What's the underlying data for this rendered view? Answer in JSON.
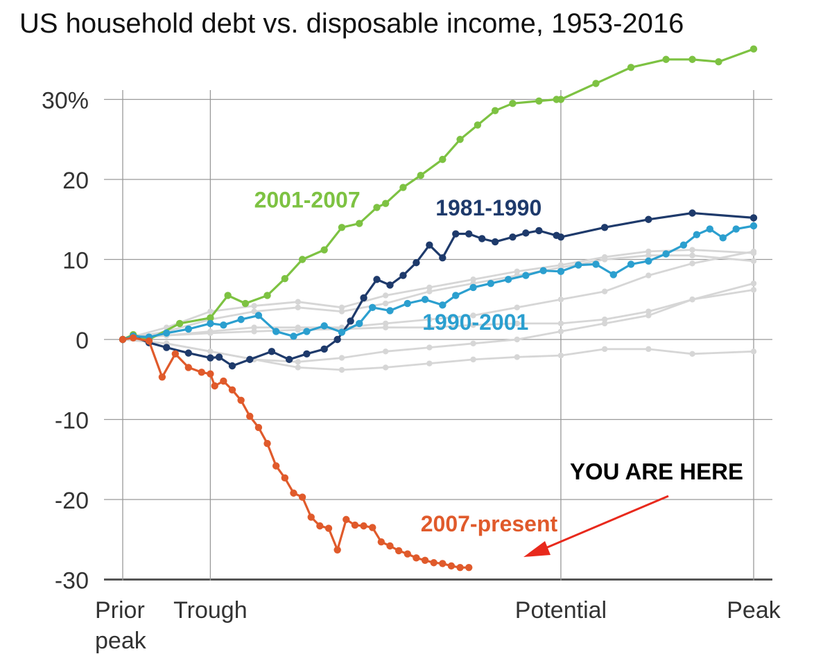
{
  "chart_data": {
    "type": "line",
    "title": "US household debt vs. disposable income, 1953-2016",
    "xlabel": "",
    "ylabel": "",
    "ylim": [
      -30,
      36
    ],
    "y_ticks": [
      "30%",
      "20",
      "10",
      "0",
      "-10",
      "-20",
      "-30"
    ],
    "y_tick_values": [
      30,
      20,
      10,
      0,
      -10,
      -20,
      -30
    ],
    "x_ticks": [
      {
        "value": 0,
        "label": "Prior\npeak"
      },
      {
        "value": 1,
        "label": "Trough"
      },
      {
        "value": 5,
        "label": "Potential"
      },
      {
        "value": 7.2,
        "label": "Peak"
      }
    ],
    "xlim": [
      0,
      7.2
    ],
    "grid": true,
    "annotation": "YOU ARE HERE",
    "series": [
      {
        "name": "2001-2007",
        "color": "#7dc242",
        "emphasis": true,
        "x": [
          0,
          0.12,
          0.3,
          0.65,
          1,
          1.2,
          1.4,
          1.65,
          1.85,
          2.05,
          2.3,
          2.5,
          2.7,
          2.9,
          3.0,
          3.2,
          3.4,
          3.65,
          3.85,
          4.05,
          4.25,
          4.45,
          4.75,
          4.95,
          5.0,
          5.4,
          5.8,
          6.2,
          6.5,
          6.8,
          7.2
        ],
        "y": [
          0,
          0.6,
          0,
          2,
          2.7,
          5.5,
          4.5,
          5.5,
          7.6,
          10,
          11.2,
          14,
          14.5,
          16.5,
          17,
          19,
          20.5,
          22.5,
          25,
          26.8,
          28.6,
          29.5,
          29.8,
          30,
          30,
          32,
          34,
          35,
          35,
          34.7,
          36.3
        ]
      },
      {
        "name": "1981-1990",
        "color": "#1e3a6b",
        "emphasis": true,
        "x": [
          0,
          0.12,
          0.3,
          0.5,
          0.75,
          1,
          1.1,
          1.25,
          1.45,
          1.7,
          1.9,
          2.1,
          2.3,
          2.45,
          2.6,
          2.75,
          2.9,
          3.05,
          3.2,
          3.35,
          3.5,
          3.65,
          3.8,
          3.95,
          4.1,
          4.25,
          4.45,
          4.6,
          4.75,
          4.95,
          5.0,
          5.5,
          6.0,
          6.5,
          7.2
        ],
        "y": [
          0,
          0.4,
          -0.4,
          -1,
          -1.7,
          -2.3,
          -2.2,
          -3.3,
          -2.5,
          -1.5,
          -2.5,
          -1.8,
          -1.2,
          0,
          2.3,
          5.2,
          7.5,
          6.8,
          8,
          9.6,
          11.8,
          10.2,
          13.2,
          13.2,
          12.6,
          12.2,
          12.8,
          13.3,
          13.6,
          13,
          12.8,
          14,
          15,
          15.8,
          15.2
        ]
      },
      {
        "name": "1990-2001",
        "color": "#2b9fcf",
        "emphasis": true,
        "x": [
          0,
          0.12,
          0.3,
          0.5,
          0.75,
          1,
          1.15,
          1.35,
          1.55,
          1.75,
          1.95,
          2.1,
          2.3,
          2.5,
          2.7,
          2.85,
          3.05,
          3.25,
          3.45,
          3.65,
          3.8,
          4.0,
          4.2,
          4.4,
          4.6,
          4.8,
          5.0,
          5.2,
          5.4,
          5.6,
          5.8,
          6.0,
          6.2,
          6.4,
          6.55,
          6.7,
          6.85,
          7.0,
          7.2
        ],
        "y": [
          0,
          0.4,
          0.3,
          0.8,
          1.3,
          2,
          1.8,
          2.5,
          3,
          1,
          0.4,
          1,
          1.7,
          0.9,
          2,
          4,
          3.6,
          4.5,
          5,
          4.3,
          5.5,
          6.5,
          7,
          7.5,
          8,
          8.6,
          8.5,
          9.3,
          9.4,
          8.1,
          9.4,
          9.8,
          10.7,
          11.8,
          13.1,
          13.8,
          12.7,
          13.8,
          14.2
        ]
      },
      {
        "name": "2007-present",
        "color": "#e05a2b",
        "emphasis": true,
        "x": [
          0,
          0.12,
          0.3,
          0.45,
          0.6,
          0.75,
          0.9,
          1.0,
          1.05,
          1.15,
          1.25,
          1.35,
          1.45,
          1.55,
          1.65,
          1.75,
          1.85,
          1.95,
          2.05,
          2.15,
          2.25,
          2.35,
          2.45,
          2.55,
          2.65,
          2.75,
          2.85,
          2.95,
          3.05,
          3.15,
          3.25,
          3.35,
          3.45,
          3.55,
          3.65,
          3.75,
          3.85,
          3.95
        ],
        "y": [
          0,
          0.2,
          -0.2,
          -4.7,
          -1.8,
          -3.5,
          -4.1,
          -4.3,
          -5.8,
          -5.2,
          -6.3,
          -7.6,
          -9.6,
          -11,
          -13,
          -15.8,
          -17.3,
          -19.2,
          -19.7,
          -22.2,
          -23.3,
          -23.6,
          -26.3,
          -22.5,
          -23.2,
          -23.3,
          -23.5,
          -25.3,
          -25.8,
          -26.4,
          -26.8,
          -27.3,
          -27.6,
          -27.9,
          -28,
          -28.3,
          -28.5,
          -28.5
        ]
      },
      {
        "name": "",
        "color": "#d6d6d6",
        "emphasis": false,
        "x": [
          0,
          0.5,
          1,
          1.5,
          2,
          2.5,
          3,
          3.5,
          4,
          4.5,
          5,
          5.5,
          6,
          6.5,
          7.2
        ],
        "y": [
          0,
          1.5,
          3.5,
          4.2,
          4.7,
          4,
          5.5,
          6.5,
          7.5,
          8.5,
          9.3,
          10.3,
          11,
          11.2,
          10.8
        ]
      },
      {
        "name": "",
        "color": "#d6d6d6",
        "emphasis": false,
        "x": [
          0,
          0.5,
          1,
          1.5,
          2,
          2.5,
          3,
          3.5,
          4,
          4.5,
          5,
          5.5,
          6,
          6.5,
          7.2
        ],
        "y": [
          0,
          1,
          2.5,
          3.5,
          4,
          3.5,
          4.5,
          6,
          7,
          8,
          9,
          10,
          10.5,
          10.5,
          9.8
        ]
      },
      {
        "name": "",
        "color": "#d6d6d6",
        "emphasis": false,
        "x": [
          0,
          0.5,
          1,
          1.5,
          2,
          2.5,
          3,
          3.5,
          4,
          4.5,
          5,
          5.5,
          6,
          6.5,
          7.2
        ],
        "y": [
          0,
          0.5,
          1,
          1.5,
          1.5,
          1.5,
          2,
          2.5,
          3,
          4,
          5,
          6,
          8,
          9.5,
          11
        ]
      },
      {
        "name": "",
        "color": "#d6d6d6",
        "emphasis": false,
        "x": [
          0,
          0.5,
          1,
          1.5,
          2,
          2.5,
          3,
          3.5,
          4,
          4.5,
          5,
          5.5,
          6,
          6.5,
          7.2
        ],
        "y": [
          0,
          0.5,
          0.8,
          1,
          1.2,
          1.3,
          1.5,
          1.5,
          1.8,
          2,
          2,
          2.5,
          3.5,
          5,
          7
        ]
      },
      {
        "name": "",
        "color": "#d6d6d6",
        "emphasis": false,
        "x": [
          0,
          0.5,
          1,
          1.5,
          2,
          2.5,
          3,
          3.5,
          4,
          4.5,
          5,
          5.5,
          6,
          6.5,
          7.2
        ],
        "y": [
          0,
          -0.5,
          -1.5,
          -2.5,
          -2.8,
          -2.3,
          -1.5,
          -1,
          -0.5,
          0,
          1,
          2,
          3,
          5,
          6.2
        ]
      },
      {
        "name": "",
        "color": "#d6d6d6",
        "emphasis": false,
        "x": [
          0,
          0.5,
          1,
          1.5,
          2,
          2.5,
          3,
          3.5,
          4,
          4.5,
          5,
          5.5,
          6,
          6.5,
          7.2
        ],
        "y": [
          0,
          -0.5,
          -1.5,
          -2.5,
          -3.5,
          -3.8,
          -3.5,
          -3,
          -2.5,
          -2.2,
          -2,
          -1.2,
          -1.2,
          -1.8,
          -1.5
        ]
      }
    ],
    "series_labels": [
      {
        "series": "2001-2007",
        "text": "2001-2007",
        "x": 1.5,
        "y": 16.5
      },
      {
        "series": "1981-1990",
        "text": "1981-1990",
        "x": 3.57,
        "y": 15.5
      },
      {
        "series": "1990-2001",
        "text": "1990-2001",
        "x": 3.42,
        "y": 1.2
      },
      {
        "series": "2007-present",
        "text": "2007-present",
        "x": 3.4,
        "y": -24
      }
    ]
  }
}
